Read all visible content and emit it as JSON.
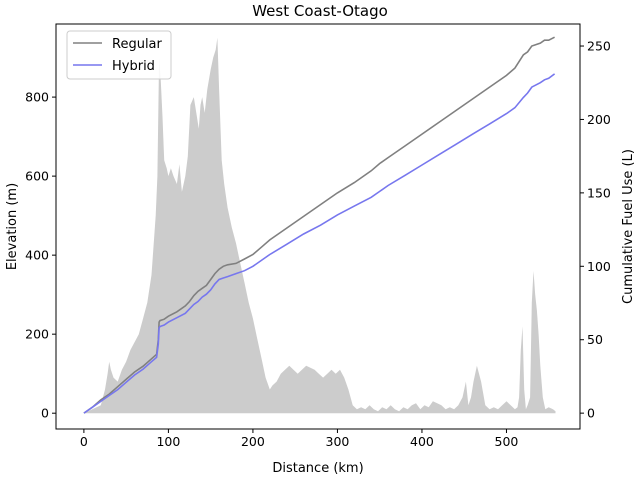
{
  "chart_data": {
    "type": "line",
    "title": "West Coast-Otago",
    "xlabel": "Distance (km)",
    "ylabel_left": "Elevation (m)",
    "ylabel_right": "Cumulative Fuel Use (L)",
    "xlim": [
      -33,
      587
    ],
    "ylim_left": [
      -40,
      985
    ],
    "ylim_right": [
      -10.8,
      265
    ],
    "xticks": [
      0,
      100,
      200,
      300,
      400,
      500
    ],
    "yticks_left": [
      0,
      200,
      400,
      600,
      800
    ],
    "yticks_right": [
      0,
      50,
      100,
      150,
      200,
      250
    ],
    "legend_position": "top-left",
    "elevation": {
      "color": "#cccccc",
      "x": [
        0,
        10,
        20,
        25,
        28,
        30,
        32,
        35,
        40,
        45,
        50,
        55,
        60,
        65,
        70,
        75,
        80,
        85,
        87,
        89,
        91,
        93,
        95,
        98,
        100,
        103,
        106,
        110,
        113,
        116,
        120,
        123,
        126,
        130,
        133,
        136,
        138,
        140,
        143,
        146,
        150,
        153,
        156,
        158,
        160,
        163,
        166,
        170,
        175,
        180,
        185,
        190,
        195,
        200,
        205,
        210,
        215,
        220,
        223,
        228,
        233,
        238,
        243,
        248,
        253,
        258,
        263,
        268,
        273,
        278,
        283,
        288,
        293,
        298,
        303,
        308,
        313,
        318,
        323,
        328,
        333,
        338,
        343,
        348,
        353,
        358,
        363,
        368,
        373,
        378,
        383,
        388,
        393,
        398,
        403,
        408,
        413,
        418,
        423,
        428,
        433,
        438,
        443,
        448,
        452,
        455,
        458,
        461,
        465,
        470,
        475,
        480,
        485,
        490,
        495,
        500,
        505,
        510,
        513,
        515,
        517,
        519,
        521,
        523,
        525,
        528,
        530,
        532,
        534,
        536,
        538,
        540,
        543,
        546,
        550,
        555,
        558
      ],
      "values": [
        0,
        10,
        20,
        60,
        100,
        130,
        110,
        90,
        80,
        110,
        130,
        160,
        180,
        200,
        240,
        280,
        350,
        500,
        600,
        900,
        840,
        750,
        640,
        620,
        600,
        620,
        600,
        580,
        630,
        560,
        600,
        650,
        780,
        800,
        760,
        720,
        780,
        800,
        760,
        820,
        870,
        900,
        920,
        950,
        820,
        640,
        580,
        520,
        470,
        430,
        380,
        330,
        280,
        240,
        190,
        140,
        90,
        60,
        70,
        80,
        100,
        110,
        120,
        110,
        100,
        110,
        120,
        115,
        110,
        100,
        90,
        100,
        110,
        100,
        110,
        90,
        60,
        20,
        10,
        15,
        10,
        20,
        10,
        5,
        15,
        10,
        20,
        10,
        5,
        15,
        10,
        20,
        25,
        10,
        20,
        15,
        30,
        25,
        20,
        10,
        15,
        10,
        20,
        40,
        80,
        20,
        40,
        80,
        120,
        80,
        20,
        10,
        15,
        10,
        20,
        30,
        20,
        10,
        15,
        40,
        160,
        220,
        60,
        10,
        20,
        40,
        280,
        360,
        300,
        260,
        200,
        120,
        40,
        10,
        15,
        10,
        5
      ]
    },
    "series": [
      {
        "name": "Regular",
        "color": "#808080",
        "x": [
          0,
          10,
          20,
          30,
          40,
          50,
          60,
          70,
          80,
          86,
          88,
          89,
          90,
          95,
          100,
          110,
          120,
          125,
          130,
          135,
          140,
          145,
          150,
          155,
          160,
          165,
          170,
          180,
          190,
          200,
          210,
          220,
          240,
          260,
          280,
          300,
          320,
          340,
          350,
          360,
          380,
          400,
          420,
          440,
          460,
          480,
          500,
          510,
          520,
          525,
          530,
          540,
          545,
          550,
          557
        ],
        "values": [
          0,
          4,
          9,
          13,
          18,
          23,
          28,
          32,
          37,
          40,
          50,
          62,
          63,
          64,
          66,
          69,
          73,
          76,
          80,
          83,
          85,
          87,
          91,
          95,
          98,
          100,
          101,
          102,
          105,
          108,
          113,
          118,
          126,
          134,
          142,
          150,
          157,
          165,
          170,
          174,
          182,
          190,
          198,
          206,
          214,
          222,
          230,
          235,
          244,
          246,
          250,
          252,
          254,
          254,
          256
        ]
      },
      {
        "name": "Hybrid",
        "color": "#7777ee",
        "x": [
          0,
          10,
          20,
          30,
          40,
          50,
          60,
          70,
          80,
          86,
          88,
          89,
          90,
          95,
          100,
          110,
          120,
          125,
          130,
          135,
          140,
          145,
          150,
          155,
          160,
          165,
          170,
          180,
          190,
          200,
          210,
          220,
          240,
          260,
          280,
          300,
          320,
          340,
          350,
          360,
          380,
          400,
          420,
          440,
          460,
          480,
          500,
          510,
          520,
          525,
          530,
          540,
          545,
          550,
          557
        ],
        "values": [
          0,
          4,
          8,
          12,
          16,
          21,
          26,
          30,
          35,
          38,
          47,
          58,
          59,
          60,
          62,
          65,
          68,
          71,
          74,
          76,
          79,
          81,
          84,
          88,
          91,
          92,
          93,
          95,
          97,
          100,
          104,
          108,
          115,
          122,
          128,
          135,
          141,
          147,
          151,
          155,
          162,
          169,
          176,
          183,
          190,
          197,
          204,
          208,
          215,
          218,
          222,
          225,
          227,
          228,
          231
        ]
      }
    ]
  }
}
